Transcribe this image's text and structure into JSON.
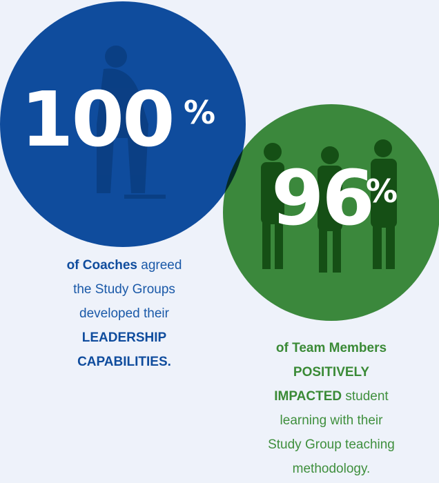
{
  "stats": [
    {
      "number": "100",
      "unit": "%",
      "caption": [
        "of Coaches",
        " agreed",
        "the Study Groups",
        "developed their",
        "LEADERSHIP",
        "CAPABILITIES."
      ]
    },
    {
      "number": "96",
      "unit": "%",
      "caption": [
        "of Team Members",
        "POSITIVELY",
        "IMPACTED",
        " student",
        "learning with their",
        "Study Group teaching",
        "methodology."
      ]
    }
  ]
}
